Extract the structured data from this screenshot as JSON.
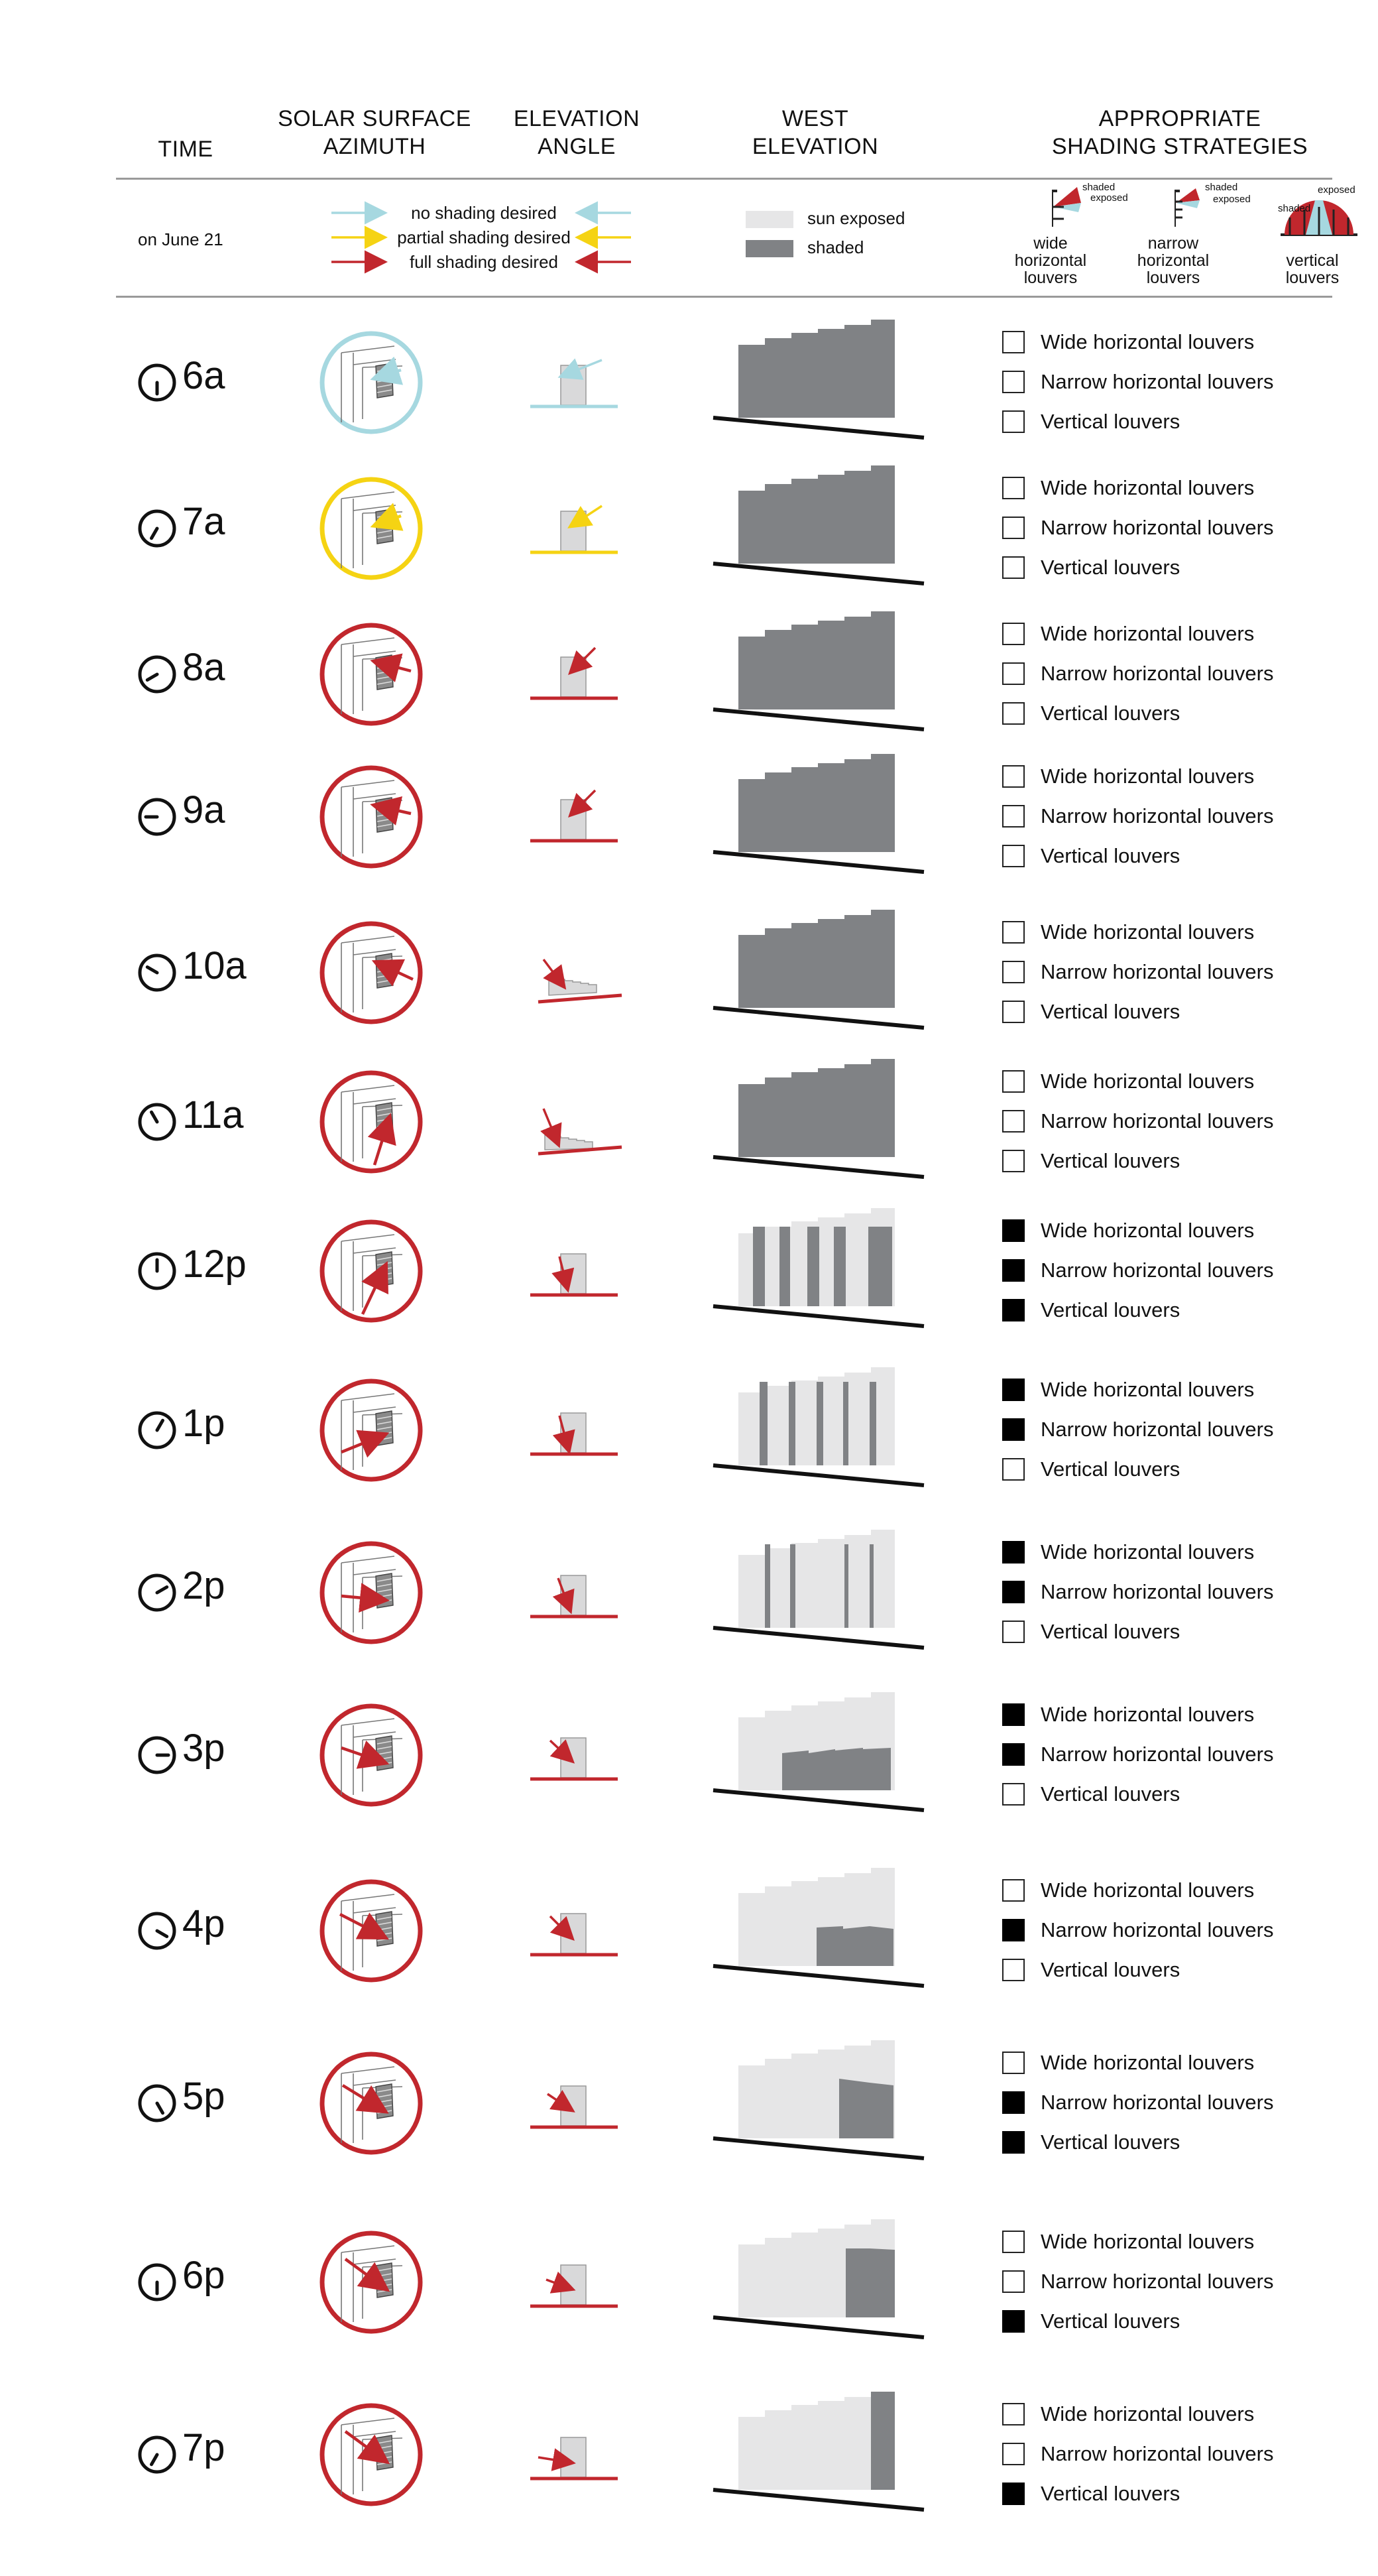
{
  "headers": {
    "time": "TIME",
    "azimuth": [
      "SOLAR SURFACE",
      "AZIMUTH"
    ],
    "elevation": [
      "ELEVATION",
      "ANGLE"
    ],
    "west": [
      "WEST",
      "ELEVATION"
    ],
    "strategies": [
      "APPROPRIATE",
      "SHADING STRATEGIES"
    ]
  },
  "legend": {
    "date": "on June 21",
    "arrows": [
      {
        "label": "no shading desired",
        "color": "#a6d8e0"
      },
      {
        "label": "partial shading desired",
        "color": "#f5d313"
      },
      {
        "label": "full shading desired",
        "color": "#c1272d"
      }
    ],
    "swatches": [
      {
        "label": "sun exposed",
        "color": "#e6e6e7"
      },
      {
        "label": "shaded",
        "color": "#808285"
      }
    ],
    "strategy_icons": [
      {
        "name": [
          "wide",
          "horizontal",
          "louvers"
        ],
        "small_labels": [
          "shaded",
          "exposed"
        ]
      },
      {
        "name": [
          "narrow",
          "horizontal",
          "louvers"
        ],
        "small_labels": [
          "shaded",
          "exposed"
        ]
      },
      {
        "name": [
          "vertical",
          "louvers"
        ],
        "small_labels": [
          "exposed",
          "shaded"
        ]
      }
    ]
  },
  "options": [
    "Wide horizontal louvers",
    "Narrow horizontal louvers",
    "Vertical louvers"
  ],
  "rows": [
    {
      "time": "6a",
      "hour": 6,
      "level": "none",
      "checks": [
        false,
        false,
        false
      ]
    },
    {
      "time": "7a",
      "hour": 7,
      "level": "partial",
      "checks": [
        false,
        false,
        false
      ]
    },
    {
      "time": "8a",
      "hour": 8,
      "level": "full",
      "checks": [
        false,
        false,
        false
      ]
    },
    {
      "time": "9a",
      "hour": 9,
      "level": "full",
      "checks": [
        false,
        false,
        false
      ]
    },
    {
      "time": "10a",
      "hour": 10,
      "level": "full",
      "checks": [
        false,
        false,
        false
      ]
    },
    {
      "time": "11a",
      "hour": 11,
      "level": "full",
      "checks": [
        false,
        false,
        false
      ]
    },
    {
      "time": "12p",
      "hour": 12,
      "level": "full",
      "checks": [
        true,
        true,
        true
      ]
    },
    {
      "time": "1p",
      "hour": 1,
      "level": "full",
      "checks": [
        true,
        true,
        false
      ]
    },
    {
      "time": "2p",
      "hour": 2,
      "level": "full",
      "checks": [
        true,
        true,
        false
      ]
    },
    {
      "time": "3p",
      "hour": 3,
      "level": "full",
      "checks": [
        true,
        true,
        false
      ]
    },
    {
      "time": "4p",
      "hour": 4,
      "level": "full",
      "checks": [
        false,
        true,
        false
      ]
    },
    {
      "time": "5p",
      "hour": 5,
      "level": "full",
      "checks": [
        false,
        true,
        true
      ]
    },
    {
      "time": "6p",
      "hour": 6,
      "level": "full",
      "checks": [
        false,
        false,
        true
      ]
    },
    {
      "time": "7p",
      "hour": 7,
      "level": "full",
      "checks": [
        false,
        false,
        true
      ]
    }
  ]
}
